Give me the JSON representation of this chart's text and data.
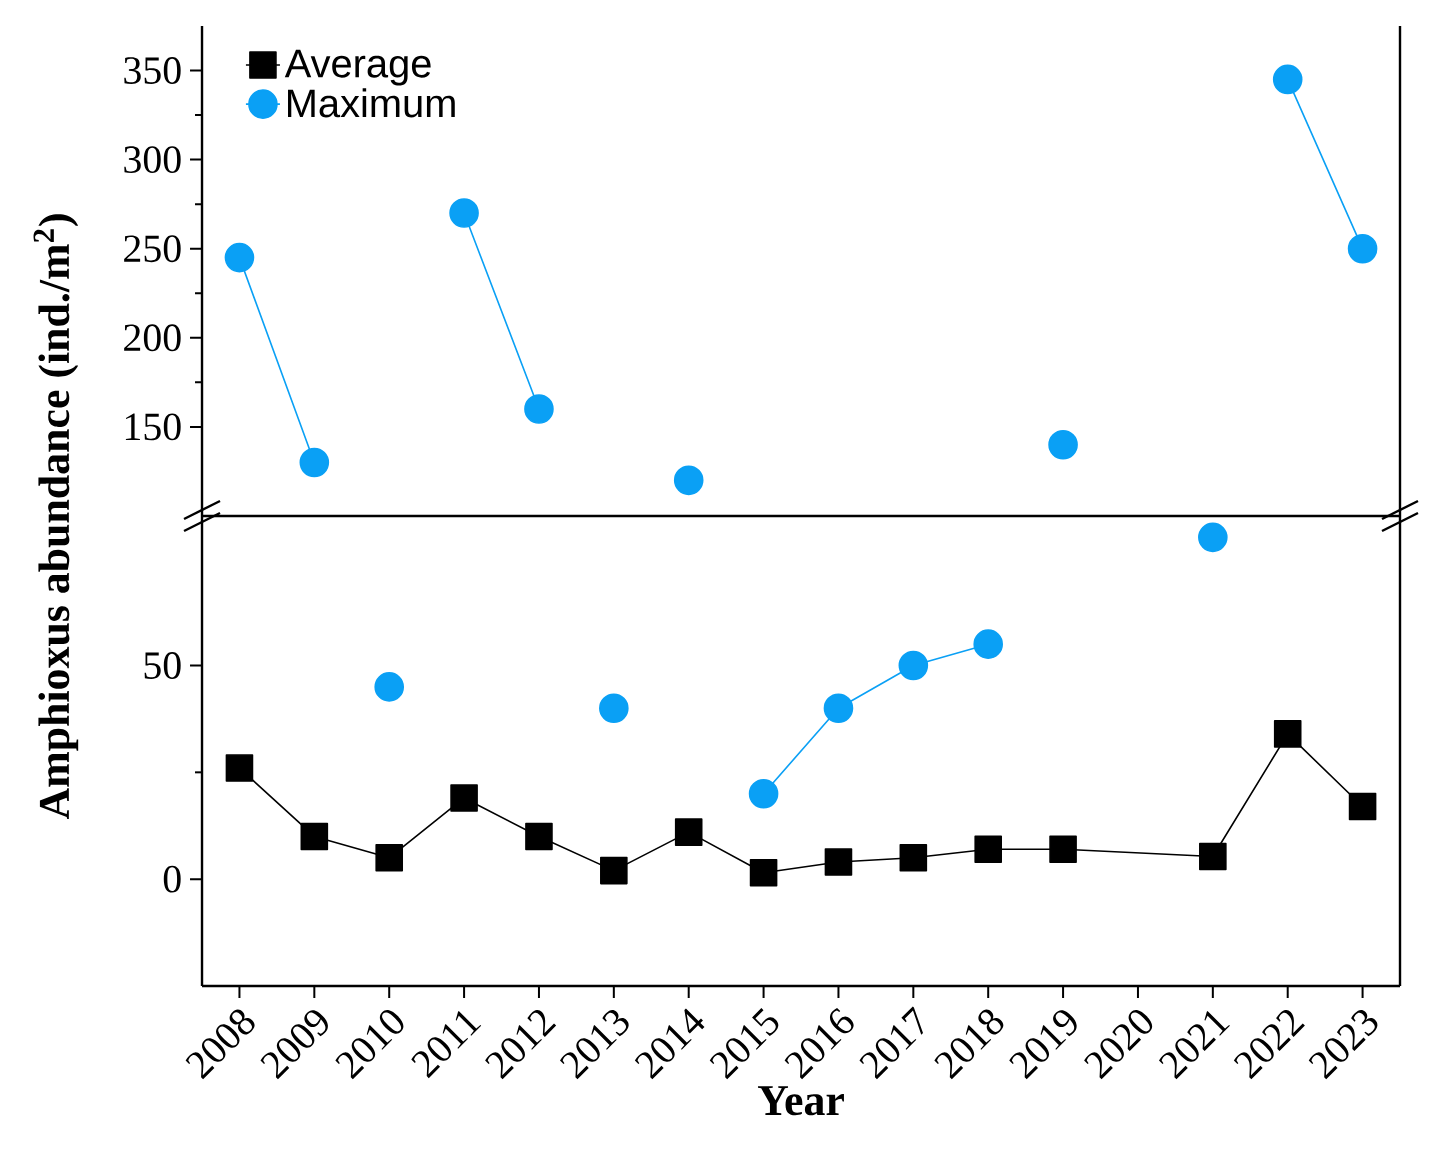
{
  "chart_data": [
    {
      "type": "line",
      "ylabel": "Amphioxus abundance (ind./m$^{2}$)",
      "xlim": [
        2007.5,
        2023.5
      ],
      "ylim": [
        100,
        375
      ],
      "yticks": [
        150,
        200,
        250,
        300,
        350
      ],
      "tick_labels": "y",
      "legend": "top left",
      "x": [
        2008,
        2009,
        2010,
        2011,
        2012,
        2013,
        2014,
        2015,
        2016,
        2017,
        2018,
        2019,
        2021,
        2022,
        2023
      ],
      "series": [
        {
          "name": "Average",
          "color": "#000000",
          "marker": "square",
          "values": [
            null,
            null,
            null,
            null,
            null,
            null,
            null,
            null,
            null,
            null,
            null,
            null,
            null,
            null,
            null
          ]
        },
        {
          "name": "Maximum",
          "color": "#0aa0f5",
          "marker": "circle",
          "values": [
            245,
            130,
            null,
            270,
            160,
            null,
            120,
            null,
            null,
            null,
            null,
            140,
            null,
            345,
            250
          ]
        }
      ]
    },
    {
      "type": "line",
      "xlabel": "Year",
      "xlim": [
        2007.5,
        2023.5
      ],
      "xticks": [
        2008,
        2009,
        2010,
        2011,
        2012,
        2013,
        2014,
        2015,
        2016,
        2017,
        2018,
        2019,
        2020,
        2021,
        2022,
        2023
      ],
      "ylim": [
        -25,
        85
      ],
      "yticks": [
        0,
        50
      ],
      "x": [
        2008,
        2009,
        2010,
        2011,
        2012,
        2013,
        2014,
        2015,
        2016,
        2017,
        2018,
        2019,
        2021,
        2022,
        2023
      ],
      "series": [
        {
          "color": "#000000",
          "marker": "square",
          "values": [
            26,
            10,
            5,
            19,
            10,
            2,
            11,
            1.5,
            4,
            5,
            7,
            7,
            5.3,
            34,
            17
          ]
        },
        {
          "color": "#0aa0f5",
          "marker": "circle",
          "values": [
            null,
            null,
            45,
            null,
            null,
            40,
            null,
            20,
            40,
            50,
            55,
            null,
            80,
            null,
            null
          ]
        }
      ]
    }
  ]
}
